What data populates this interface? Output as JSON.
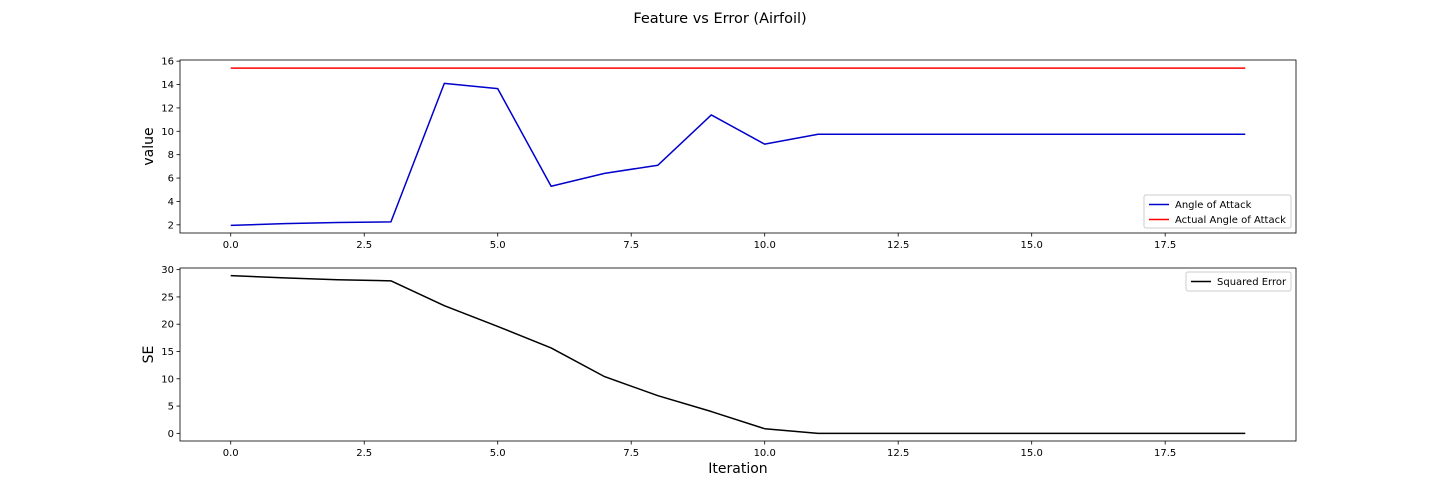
{
  "figure": {
    "suptitle": "Feature vs Error (Airfoil)"
  },
  "chart_data": [
    {
      "type": "line",
      "title": "",
      "xlabel": "",
      "ylabel": "value",
      "xlim": [
        -0.95,
        19.95
      ],
      "ylim": [
        1.3,
        16.1
      ],
      "xticks": [
        0,
        2.5,
        5,
        7.5,
        10,
        12.5,
        15,
        17.5
      ],
      "xtick_labels": [
        "0.0",
        "2.5",
        "5.0",
        "7.5",
        "10.0",
        "12.5",
        "15.0",
        "17.5"
      ],
      "yticks": [
        2,
        4,
        6,
        8,
        10,
        12,
        14,
        16
      ],
      "ytick_labels": [
        "2",
        "4",
        "6",
        "8",
        "10",
        "12",
        "14",
        "16"
      ],
      "grid": false,
      "legend_position": "lower-right",
      "x": [
        0,
        1,
        2,
        3,
        4,
        5,
        6,
        7,
        8,
        9,
        10,
        11,
        12,
        13,
        14,
        15,
        16,
        17,
        18,
        19
      ],
      "series": [
        {
          "name": "Angle of Attack",
          "color": "#0000cc",
          "values": [
            1.95,
            2.1,
            2.2,
            2.25,
            14.1,
            13.65,
            5.3,
            6.4,
            7.1,
            11.4,
            8.9,
            9.75,
            9.75,
            9.75,
            9.75,
            9.75,
            9.75,
            9.75,
            9.75,
            9.75
          ]
        },
        {
          "name": "Actual Angle of Attack",
          "color": "#ff0000",
          "values": [
            15.4,
            15.4,
            15.4,
            15.4,
            15.4,
            15.4,
            15.4,
            15.4,
            15.4,
            15.4,
            15.4,
            15.4,
            15.4,
            15.4,
            15.4,
            15.4,
            15.4,
            15.4,
            15.4,
            15.4
          ]
        }
      ]
    },
    {
      "type": "line",
      "title": "",
      "xlabel": "Iteration",
      "ylabel": "SE",
      "xlim": [
        -0.95,
        19.95
      ],
      "ylim": [
        -1.4,
        30.3
      ],
      "xticks": [
        0,
        2.5,
        5,
        7.5,
        10,
        12.5,
        15,
        17.5
      ],
      "xtick_labels": [
        "0.0",
        "2.5",
        "5.0",
        "7.5",
        "10.0",
        "12.5",
        "15.0",
        "17.5"
      ],
      "yticks": [
        0,
        5,
        10,
        15,
        20,
        25,
        30
      ],
      "ytick_labels": [
        "0",
        "5",
        "10",
        "15",
        "20",
        "25",
        "30"
      ],
      "grid": false,
      "legend_position": "upper-right",
      "x": [
        0,
        1,
        2,
        3,
        4,
        5,
        6,
        7,
        8,
        9,
        10,
        11,
        12,
        13,
        14,
        15,
        16,
        17,
        18,
        19
      ],
      "series": [
        {
          "name": "Squared Error",
          "color": "#000000",
          "values": [
            28.9,
            28.5,
            28.15,
            27.95,
            23.4,
            19.6,
            15.65,
            10.4,
            6.9,
            4.0,
            0.85,
            0.0,
            0.0,
            0.0,
            0.0,
            0.0,
            0.0,
            0.0,
            0.0,
            0.0
          ]
        }
      ]
    }
  ]
}
